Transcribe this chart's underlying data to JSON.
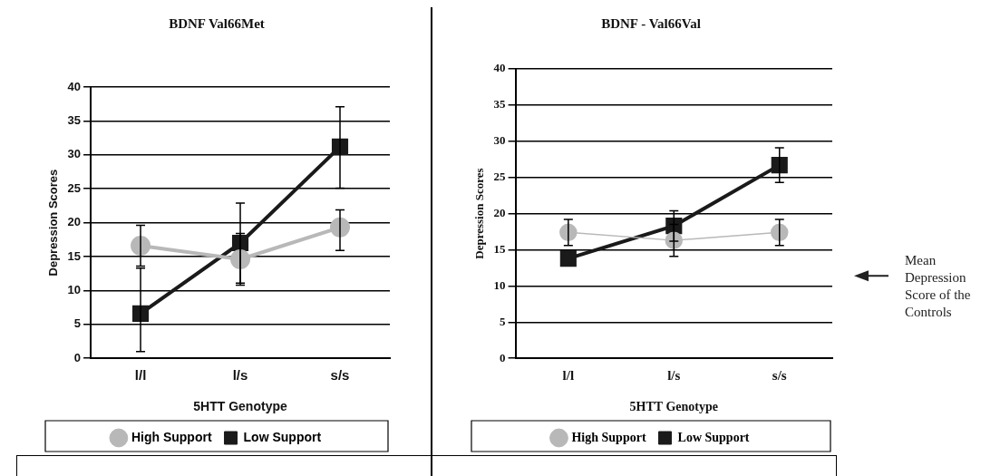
{
  "chart_data": [
    {
      "type": "line",
      "title": "BDNF Val66Met",
      "xlabel": "5HTT Genotype",
      "ylabel": "Depression Scores",
      "categories": [
        "l/l",
        "l/s",
        "s/s"
      ],
      "ylim": [
        0,
        40
      ],
      "yticks": [
        0,
        5,
        10,
        15,
        20,
        25,
        30,
        35,
        40
      ],
      "grid": "y",
      "legend": "bottom",
      "series": [
        {
          "name": "High Support",
          "color": "#b8b8b8",
          "marker": "circle",
          "values": [
            16.6,
            14.6,
            19.3
          ],
          "errors": [
            [
              13.6,
              19.6
            ],
            [
              10.8,
              18.4
            ],
            [
              15.9,
              21.9
            ]
          ]
        },
        {
          "name": "Low Support",
          "color": "#1a1a1a",
          "marker": "square",
          "values": [
            6.6,
            17,
            31.2
          ],
          "errors": [
            [
              1,
              13.3
            ],
            [
              11.1,
              22.9
            ],
            [
              25.1,
              37.1
            ]
          ]
        }
      ]
    },
    {
      "type": "line",
      "title": "BDNF - Val66Val",
      "xlabel": "5HTT Genotype",
      "ylabel": "Depression Scores",
      "categories": [
        "l/l",
        "l/s",
        "s/s"
      ],
      "ylim": [
        0,
        40
      ],
      "yticks": [
        0,
        5,
        10,
        15,
        20,
        25,
        30,
        35,
        40
      ],
      "grid": "y",
      "legend": "bottom",
      "annotations": [
        "Mean Depression Score of the Controls"
      ],
      "series": [
        {
          "name": "High Support",
          "color": "#b8b8b8",
          "marker": "circle",
          "values": [
            17.4,
            16.3,
            17.4
          ],
          "errors": [
            [
              15.6,
              19.2
            ],
            [
              14.1,
              18.5
            ],
            [
              15.6,
              19.2
            ]
          ]
        },
        {
          "name": "Low Support",
          "color": "#1a1a1a",
          "marker": "square",
          "values": [
            13.8,
            18.3,
            26.7
          ],
          "errors": [
            null,
            [
              16.2,
              20.4
            ],
            [
              24.3,
              29.1
            ]
          ]
        }
      ]
    }
  ]
}
